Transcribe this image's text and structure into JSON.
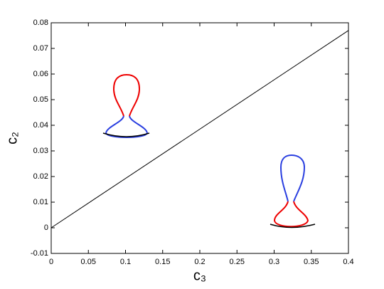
{
  "chart_data": {
    "type": "line",
    "xlabel": "c₃",
    "ylabel": "c₂",
    "x": [
      0,
      0.4
    ],
    "series": [
      {
        "color": "#000000",
        "values": [
          0,
          0.077
        ]
      }
    ],
    "xlim": [
      0,
      0.4
    ],
    "xticks": [
      0,
      0.05,
      0.1,
      0.15,
      0.2,
      0.25,
      0.3,
      0.35,
      0.4
    ],
    "ylim": [
      -0.01,
      0.08
    ],
    "yticks": [
      -0.01,
      0,
      0.01,
      0.02,
      0.03,
      0.04,
      0.05,
      0.06,
      0.07,
      0.08
    ],
    "grid": false
  }
}
